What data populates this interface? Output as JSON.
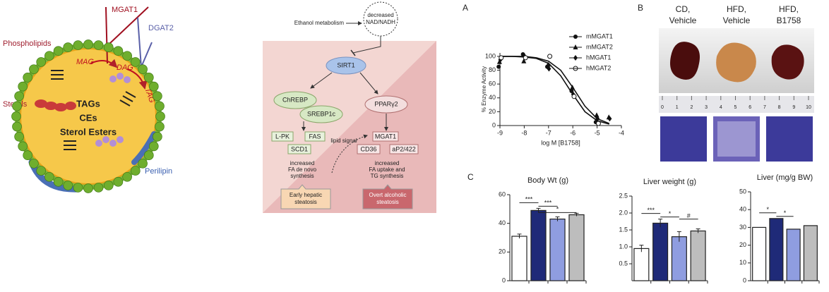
{
  "panel_labels": [
    "A",
    "B",
    "C"
  ],
  "lipid_droplet": {
    "mgat1": "MGAT1",
    "dgat2": "DGAT2",
    "phospholipids": "Phospholipids",
    "sterols": "Sterols",
    "mag": "MAG",
    "dag": "DAG",
    "tag": "TAG",
    "tags": "TAGs",
    "ces": "CEs",
    "sterol_esters": "Sterol Esters",
    "perilipin": "Perilipin"
  },
  "pathway": {
    "ethanol": "Ethanol metabolism",
    "nad": [
      "decreased",
      "NAD/NADH"
    ],
    "sirt1": "SIRT1",
    "chrebp": "ChREBP",
    "srebp1c": "SREBP1c",
    "pparg2": "PPARγ2",
    "lpk": "L-PK",
    "fas": "FAS",
    "scd1": "SCD1",
    "mgat1": "MGAT1",
    "cd36": "CD36",
    "ap2": "aP2/422",
    "lipid_signal": "lipid signal",
    "left_outcome": [
      "increased",
      "FA de novo",
      "synthesis"
    ],
    "right_outcome": [
      "increased",
      "FA uptake and",
      "TG synthesis"
    ],
    "early": [
      "Early hepatic",
      "steatosis"
    ],
    "overt": [
      "Overt alcoholic",
      "steatosis"
    ]
  },
  "liver_images": {
    "groups": [
      [
        "CD,",
        "Vehicle"
      ],
      [
        "HFD,",
        "Vehicle"
      ],
      [
        "HFD,",
        "B1758"
      ]
    ],
    "ruler": [
      0,
      1,
      2,
      3,
      4,
      5,
      6,
      7,
      8,
      9,
      10
    ]
  },
  "chart_data": [
    {
      "type": "scatter",
      "ylabel": "% Enzyme Activity",
      "xlabel": "log M [B1758]",
      "xlim": [
        -9,
        -4
      ],
      "ylim": [
        0,
        105
      ],
      "xticks": [
        -9,
        -8,
        -7,
        -6,
        -5,
        -4
      ],
      "yticks": [
        0,
        20,
        40,
        60,
        80,
        100
      ],
      "x": [
        -9,
        -8,
        -7,
        -6,
        -5,
        -4.5
      ],
      "series": [
        {
          "name": "mMGAT1",
          "color": "#111",
          "marker": "circle",
          "values": [
            85,
            103,
            85,
            50,
            5,
            null
          ]
        },
        {
          "name": "mMGAT2",
          "color": "#111",
          "marker": "triangle",
          "values": [
            92,
            93,
            88,
            55,
            15,
            12
          ]
        },
        {
          "name": "hMGAT1",
          "color": "#111",
          "marker": "diamond",
          "values": [
            95,
            100,
            82,
            45,
            10,
            10
          ]
        },
        {
          "name": "hMGAT2",
          "color": "#111",
          "marker": "open-circle",
          "values": [
            98,
            98,
            100,
            42,
            3,
            null
          ]
        }
      ],
      "fits": [
        {
          "x": [
            -9,
            -8.5,
            -8,
            -7.5,
            -7,
            -6.5,
            -6,
            -5.5,
            -5,
            -4.5
          ],
          "values": [
            100,
            100,
            99,
            97,
            90,
            72,
            45,
            20,
            7,
            2
          ]
        },
        {
          "x": [
            -9,
            -8.5,
            -8,
            -7.5,
            -7,
            -6.5,
            -6,
            -5.5,
            -5,
            -4.5
          ],
          "values": [
            100,
            100,
            100,
            98,
            93,
            80,
            55,
            28,
            10,
            3
          ]
        }
      ]
    },
    {
      "type": "bar",
      "title": "Body Wt (g)",
      "categories": [
        null,
        null,
        null,
        null
      ],
      "values": [
        31,
        49,
        43,
        46
      ],
      "errors": [
        1.5,
        1.5,
        1.5,
        1
      ],
      "colors": [
        "#ffffff",
        "#1f2a78",
        "#8f9de0",
        "#bdbdbd"
      ],
      "ylim": [
        0,
        60
      ],
      "yticks": [
        0,
        20,
        40,
        60
      ],
      "significance": [
        {
          "label": "***",
          "between": [
            0,
            1
          ]
        },
        {
          "label": "***",
          "between": [
            1,
            2
          ]
        },
        {
          "label": "*",
          "between": [
            1,
            3
          ]
        }
      ]
    },
    {
      "type": "bar",
      "title": "Liver weight (g)",
      "categories": [
        null,
        null,
        null,
        null
      ],
      "values": [
        0.95,
        1.7,
        1.3,
        1.47
      ],
      "errors": [
        0.1,
        0.12,
        0.15,
        0.06
      ],
      "colors": [
        "#ffffff",
        "#1f2a78",
        "#8f9de0",
        "#bdbdbd"
      ],
      "ylim": [
        0,
        2.5
      ],
      "yticks": [
        0.5,
        {
          "value": 1,
          "label": "1.0"
        },
        1.5,
        {
          "value": 2,
          "label": "2.0"
        },
        2.5
      ],
      "significance": [
        {
          "label": "***",
          "between": [
            0,
            1
          ]
        },
        {
          "label": "*",
          "between": [
            1,
            2
          ]
        },
        {
          "label": "#",
          "between": [
            2,
            3
          ]
        }
      ]
    },
    {
      "type": "bar",
      "title": "Liver (mg/g BW)",
      "categories": [
        null,
        null,
        null,
        null
      ],
      "values": [
        30,
        35,
        29,
        31
      ],
      "colors": [
        "#ffffff",
        "#1f2a78",
        "#8f9de0",
        "#bdbdbd"
      ],
      "ylim": [
        0,
        50
      ],
      "yticks": [
        0,
        10,
        20,
        30,
        40,
        50
      ],
      "significance": [
        {
          "label": "*",
          "between": [
            0,
            1
          ]
        },
        {
          "label": "*",
          "between": [
            1,
            2
          ]
        }
      ]
    }
  ]
}
